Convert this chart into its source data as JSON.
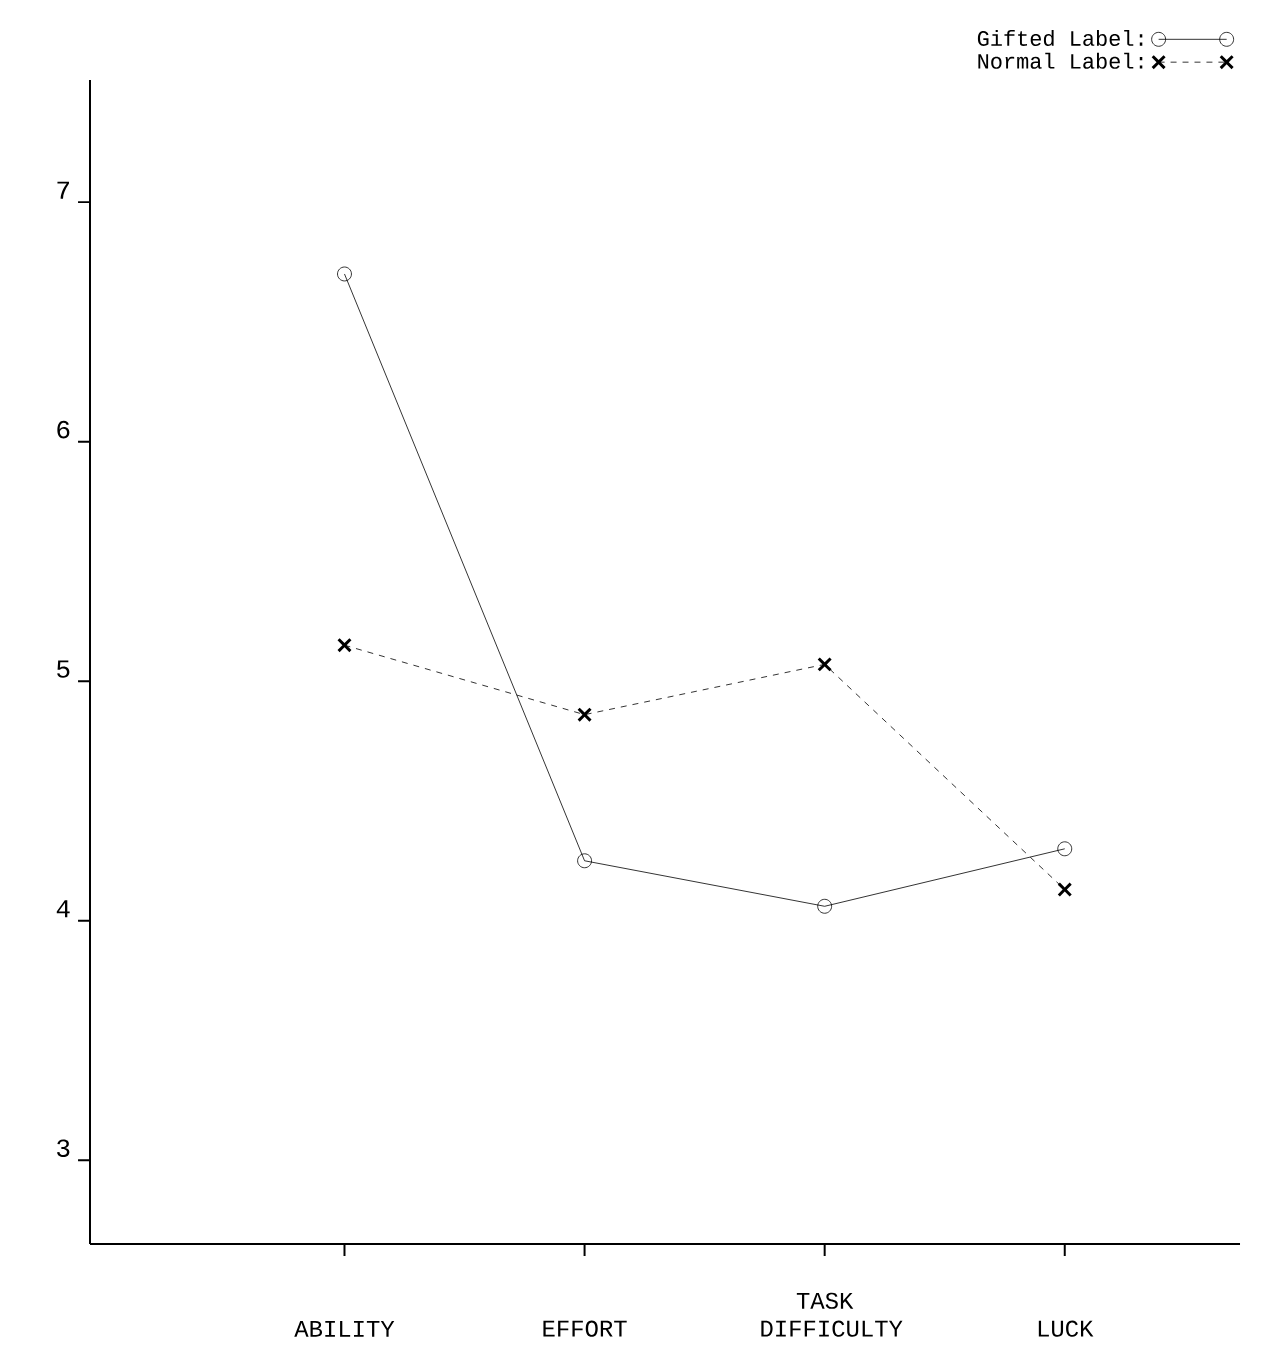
{
  "chart_data": {
    "type": "line",
    "categories": [
      "ABILITY",
      "EFFORT",
      "TASK DIFFICULTY",
      "LUCK"
    ],
    "series": [
      {
        "name": "Gifted Label:",
        "color": "#000000",
        "marker": "circle",
        "line_style": "solid",
        "values": [
          6.7,
          4.25,
          4.06,
          4.3
        ]
      },
      {
        "name": "Normal Label:",
        "color": "#000000",
        "marker": "cross",
        "line_style": "dashed",
        "values": [
          5.15,
          4.86,
          5.07,
          4.13
        ]
      }
    ],
    "ylim": [
      2.65,
      7.51
    ],
    "yticks": [
      3,
      4,
      5,
      6,
      7
    ],
    "grid": false,
    "legend": "top right"
  }
}
